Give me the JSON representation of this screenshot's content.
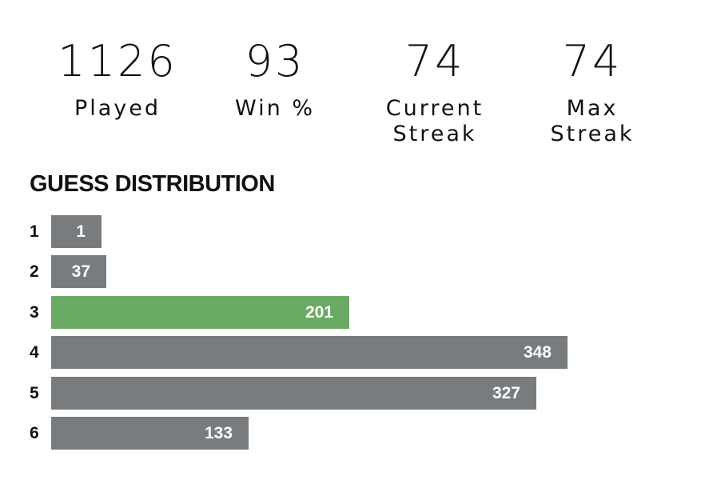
{
  "stats": {
    "played": {
      "value": "1126",
      "label": "Played"
    },
    "win_pct": {
      "value": "93",
      "label": "Win %"
    },
    "current_streak": {
      "value": "74",
      "label": "Current\nStreak"
    },
    "max_streak": {
      "value": "74",
      "label": "Max\nStreak"
    }
  },
  "distribution": {
    "title": "GUESS DISTRIBUTION",
    "rows": [
      {
        "guess": "1",
        "count": 1
      },
      {
        "guess": "2",
        "count": 37
      },
      {
        "guess": "3",
        "count": 201
      },
      {
        "guess": "4",
        "count": 348
      },
      {
        "guess": "5",
        "count": 327
      },
      {
        "guess": "6",
        "count": 133
      }
    ],
    "highlight_guess": "3",
    "max_count": 348
  },
  "colors": {
    "bar": "#787c7e",
    "bar_highlight": "#6aaa64",
    "bar_text": "#ffffff",
    "text": "#111111",
    "background": "#ffffff"
  }
}
